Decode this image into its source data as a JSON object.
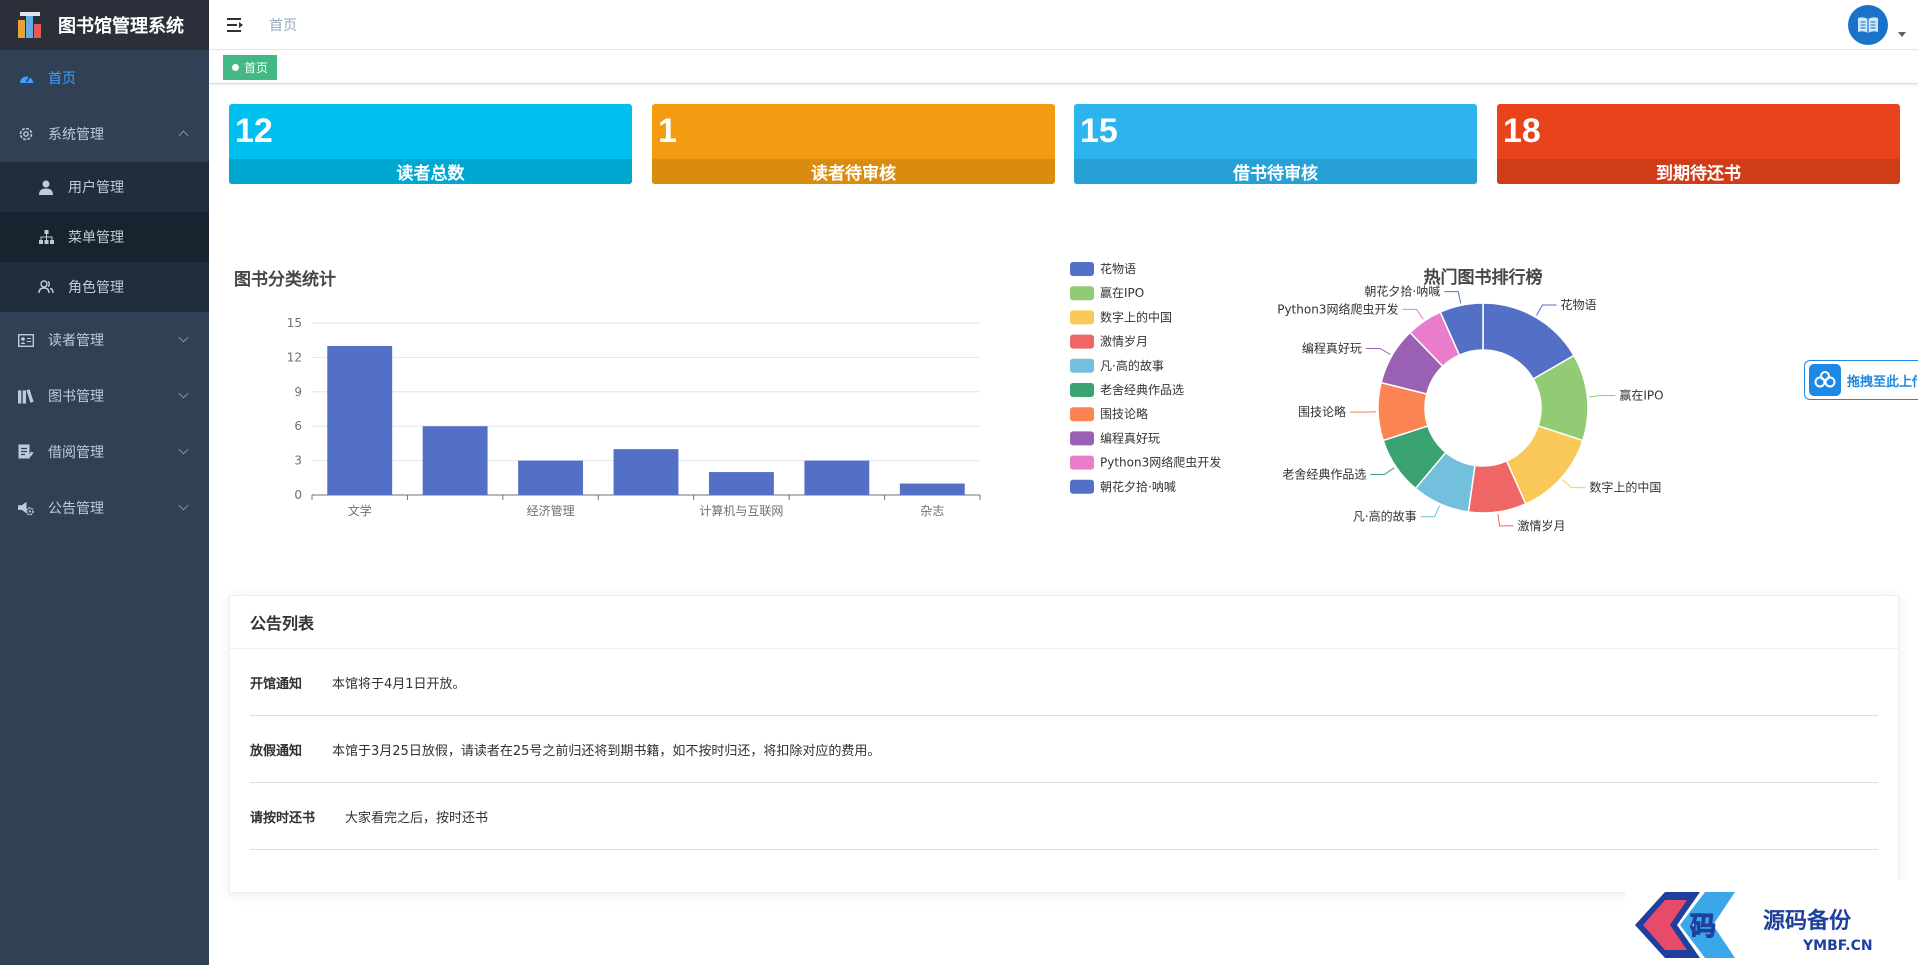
{
  "app": {
    "title": "图书馆管理系统"
  },
  "sidebar": {
    "items": [
      {
        "label": "首页",
        "icon": "dashboard-icon",
        "active": true
      },
      {
        "label": "系统管理",
        "icon": "gear-icon",
        "expanded": true,
        "children": [
          {
            "label": "用户管理",
            "icon": "user-icon"
          },
          {
            "label": "菜单管理",
            "icon": "tree-icon"
          },
          {
            "label": "角色管理",
            "icon": "peoples-icon"
          }
        ]
      },
      {
        "label": "读者管理",
        "icon": "id-card-icon"
      },
      {
        "label": "图书管理",
        "icon": "books-icon"
      },
      {
        "label": "借阅管理",
        "icon": "form-icon"
      },
      {
        "label": "公告管理",
        "icon": "speaker-gear-icon"
      }
    ]
  },
  "header": {
    "breadcrumb": "首页"
  },
  "tags": {
    "active": "首页"
  },
  "stats": [
    {
      "value": "12",
      "label": "读者总数",
      "color": "#00c0ef",
      "band": "#00a7d0"
    },
    {
      "value": "1",
      "label": "读者待审核",
      "color": "#f39c12",
      "band": "#da8c10"
    },
    {
      "value": "15",
      "label": "借书待审核",
      "color": "#2db3ee",
      "band": "#27a0d6"
    },
    {
      "value": "18",
      "label": "到期待还书",
      "color": "#e8431b",
      "band": "#d13c18"
    }
  ],
  "float_upload": {
    "label": "拖拽至此上传"
  },
  "chart_data": [
    {
      "type": "bar",
      "title": "图书分类统计",
      "categories": [
        "文学",
        "",
        "经济管理",
        "",
        "计算机与互联网",
        "",
        "杂志"
      ],
      "values": [
        13,
        6,
        3,
        4,
        2,
        3,
        1
      ],
      "ylim": [
        0,
        15
      ],
      "yticks": [
        0,
        3,
        6,
        9,
        12,
        15
      ],
      "color": "#5470c6",
      "grid": true
    },
    {
      "type": "pie",
      "title": "热门图书排行榜",
      "legend_position": "left",
      "slices": [
        {
          "name": "花物语",
          "value": 15,
          "color": "#5470c6"
        },
        {
          "name": "赢在IPO",
          "value": 12,
          "color": "#91cc75"
        },
        {
          "name": "数字上的中国",
          "value": 12,
          "color": "#fac858"
        },
        {
          "name": "激情岁月",
          "value": 8,
          "color": "#ee6666"
        },
        {
          "name": "凡·高的故事",
          "value": 8,
          "color": "#73c0de"
        },
        {
          "name": "老舍经典作品选",
          "value": 8,
          "color": "#3ba272"
        },
        {
          "name": "围技论略",
          "value": 8,
          "color": "#fc8452"
        },
        {
          "name": "编程真好玩",
          "value": 8,
          "color": "#9a60b4"
        },
        {
          "name": "Python3网络爬虫开发",
          "value": 5,
          "color": "#ea7ccc"
        },
        {
          "name": "朝花夕拾·呐喊",
          "value": 6,
          "color": "#5470c6"
        }
      ]
    }
  ],
  "notices": {
    "title": "公告列表",
    "rows": [
      {
        "title": "开馆通知",
        "content": "本馆将于4月1日开放。"
      },
      {
        "title": "放假通知",
        "content": "本馆于3月25日放假，请读者在25号之前归还将到期书籍，如不按时归还，将扣除对应的费用。"
      },
      {
        "title": "请按时还书",
        "content": "大家看完之后，按时还书"
      }
    ]
  },
  "watermark": {
    "cn": "源码备份",
    "en": "YMBF.CN",
    "glyph": "码"
  }
}
